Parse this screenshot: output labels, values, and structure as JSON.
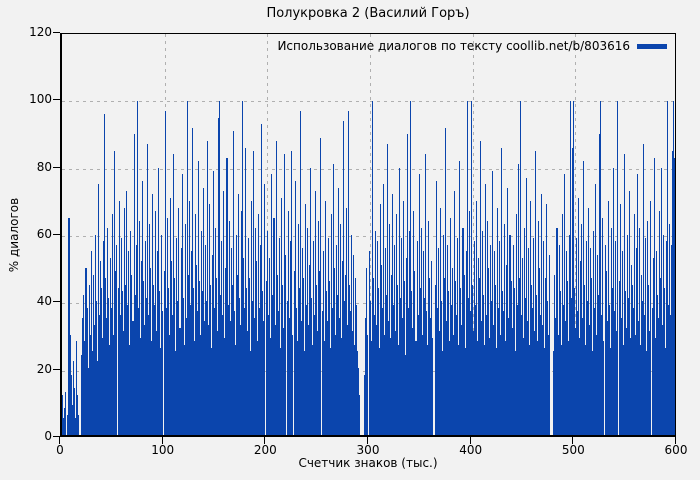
{
  "title": "Полукровка 2 (Василий Горъ)",
  "legend": {
    "label": "Использование диалогов по тексту coollib.net/b/803616",
    "swatch_color": "#0b45ad"
  },
  "axes": {
    "x": {
      "label": "Счетчик знаков (тыс.)",
      "min": 0,
      "max": 600,
      "ticks": [
        0,
        100,
        200,
        300,
        400,
        500,
        600
      ]
    },
    "y": {
      "label": "% диалогов",
      "min": 0,
      "max": 120,
      "ticks": [
        0,
        20,
        40,
        60,
        80,
        100,
        120
      ]
    }
  },
  "colors": {
    "bar": "#0b45ad",
    "background": "#f2f2f2",
    "grid": "#b0b0b0",
    "frame": "#000000"
  },
  "chart_data": {
    "type": "bar",
    "title": "Полукровка 2 (Василий Горъ)",
    "xlabel": "Счетчик знаков (тыс.)",
    "ylabel": "% диалогов",
    "xlim": [
      0,
      600
    ],
    "ylim": [
      0,
      120
    ],
    "grid": true,
    "legend_position": "top-right",
    "x_start": 0,
    "x_step": 1,
    "series": [
      {
        "name": "Использование диалогов по тексту coollib.net/b/803616",
        "values": [
          12,
          5,
          8,
          13,
          0,
          6,
          65,
          65,
          30,
          18,
          9,
          22,
          14,
          5,
          28,
          12,
          6,
          0,
          0,
          24,
          35,
          42,
          28,
          50,
          38,
          20,
          45,
          30,
          55,
          25,
          48,
          33,
          60,
          40,
          22,
          75,
          36,
          52,
          44,
          29,
          58,
          96,
          47,
          35,
          62,
          41,
          27,
          53,
          38,
          66,
          30,
          85,
          49,
          57,
          0,
          44,
          70,
          36,
          59,
          43,
          31,
          68,
          45,
          73,
          39,
          55,
          27,
          61,
          48,
          34,
          90,
          42,
          57,
          100,
          38,
          64,
          29,
          52,
          76,
          46,
          33,
          58,
          41,
          87,
          36,
          63,
          50,
          28,
          72,
          45,
          39,
          67,
          31,
          55,
          80,
          43,
          26,
          60,
          37,
          0,
          49,
          97,
          38,
          65,
          44,
          30,
          71,
          52,
          36,
          84,
          47,
          25,
          59,
          40,
          68,
          32,
          56,
          78,
          41,
          27,
          63,
          35,
          100,
          48,
          70,
          39,
          55,
          92,
          44,
          28,
          66,
          51,
          37,
          82,
          46,
          30,
          61,
          43,
          74,
          34,
          57,
          40,
          88,
          33,
          69,
          45,
          26,
          54,
          79,
          38,
          62,
          47,
          31,
          95,
          100,
          42,
          58,
          36,
          73,
          29,
          50,
          83,
          39,
          64,
          34,
          56,
          45,
          91,
          37,
          27,
          60,
          48,
          72,
          41,
          33,
          67,
          100,
          53,
          38,
          86,
          44,
          31,
          59,
          47,
          25,
          70,
          40,
          85,
          35,
          62,
          52,
          28,
          66,
          38,
          57,
          93,
          43,
          34,
          75,
          0,
          46,
          61,
          36,
          53,
          29,
          78,
          42,
          65,
          33,
          88,
          48,
          37,
          59,
          26,
          71,
          45,
          32,
          84,
          54,
          0,
          40,
          67,
          35,
          58,
          85,
          30,
          0,
          49,
          76,
          38,
          28,
          63,
          44,
          97,
          34,
          56,
          47,
          25,
          69,
          39,
          62,
          33,
          51,
          80,
          41,
          27,
          58,
          36,
          73,
          45,
          31,
          64,
          49,
          89,
          37,
          55,
          28,
          70,
          43,
          34,
          59,
          46,
          26,
          66,
          38,
          81,
          50,
          30,
          57,
          42,
          74,
          35,
          63,
          29,
          52,
          94,
          40,
          48,
          68,
          33,
          97,
          45,
          37,
          60,
          31,
          54,
          27,
          47,
          39,
          25,
          20,
          12,
          0,
          0,
          0,
          0,
          18,
          35,
          50,
          30,
          55,
          40,
          28,
          100,
          47,
          36,
          61,
          33,
          58,
          44,
          26,
          69,
          51,
          38,
          75,
          30,
          56,
          42,
          87,
          34,
          63,
          29,
          48,
          72,
          39,
          57,
          31,
          66,
          45,
          27,
          80,
          41,
          59,
          35,
          70,
          46,
          24,
          53,
          90,
          38,
          61,
          100,
          43,
          32,
          67,
          49,
          28,
          58,
          36,
          78,
          44,
          62,
          30,
          55,
          41,
          84,
          37,
          27,
          64,
          47,
          35,
          52,
          29,
          0,
          0,
          45,
          76,
          38,
          56,
          31,
          68,
          40,
          25,
          60,
          47,
          92,
          34,
          57,
          43,
          28,
          65,
          39,
          50,
          30,
          73,
          46,
          36,
          59,
          27,
          82,
          44,
          33,
          62,
          48,
          26,
          55,
          100,
          41,
          67,
          37,
          100,
          45,
          31,
          58,
          39,
          70,
          28,
          53,
          47,
          88,
          34,
          61,
          42,
          27,
          75,
          36,
          64,
          50,
          29,
          57,
          40,
          79,
          33,
          55,
          45,
          26,
          68,
          38,
          58,
          30,
          86,
          43,
          37,
          63,
          28,
          51,
          74,
          35,
          60,
          46,
          32,
          57,
          44,
          25,
          66,
          39,
          81,
          47,
          100,
          36,
          53,
          29,
          62,
          41,
          77,
          34,
          56,
          27,
          70,
          45,
          38,
          59,
          31,
          85,
          42,
          28,
          64,
          50,
          36,
          72,
          33,
          58,
          26,
          47,
          69,
          40,
          30,
          54,
          0,
          0,
          0,
          25,
          48,
          35,
          62,
          30,
          57,
          43,
          27,
          66,
          39,
          78,
          34,
          55,
          46,
          28,
          60,
          100,
          41,
          86,
          100,
          44,
          32,
          59,
          37,
          71,
          29,
          52,
          63,
          35,
          82,
          45,
          27,
          58,
          40,
          68,
          33,
          56,
          47,
          25,
          61,
          38,
          75,
          30,
          54,
          42,
          90,
          100,
          36,
          65,
          28,
          57,
          49,
          34,
          70,
          39,
          26,
          62,
          44,
          80,
          37,
          58,
          31,
          100,
          0,
          46,
          69,
          35,
          55,
          27,
          84,
          43,
          32,
          60,
          41,
          73,
          29,
          51,
          45,
          38,
          66,
          30,
          56,
          78,
          34,
          62,
          27,
          48,
          40,
          87,
          36,
          59,
          25,
          64,
          45,
          31,
          70,
          38,
          53,
          83,
          29,
          55,
          42,
          35,
          67,
          47,
          80,
          33,
          60,
          44,
          26,
          58,
          100,
          39,
          63,
          36,
          57,
          85,
          100,
          83
        ]
      }
    ]
  }
}
